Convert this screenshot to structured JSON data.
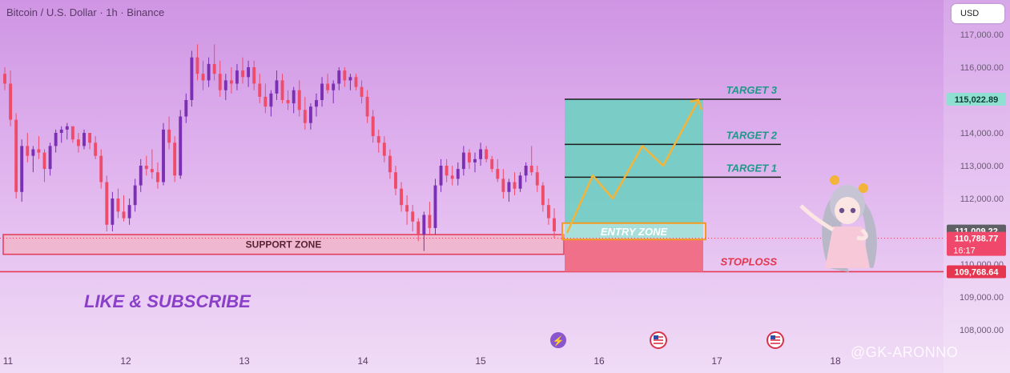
{
  "header": {
    "symbol": "Bitcoin / U.S. Dollar · 1h · Binance",
    "currency_button": "USD"
  },
  "overlay": {
    "like_text": "LIKE & SUBSCRIBE",
    "watermark": "@GK-ARONNO"
  },
  "colors": {
    "bull": "#7b2fb3",
    "bear": "#ef4c6a",
    "target_box": "#6fcfc2",
    "stop_box": "#f06c84",
    "entry_border": "#f59a20",
    "target_text": "#1f9a8a",
    "stop_text": "#e5354f",
    "arrow": "#f2b43a"
  },
  "chart_data": {
    "type": "candlestick",
    "x_tick_labels": [
      "11",
      "12",
      "13",
      "14",
      "15",
      "16",
      "17",
      "18"
    ],
    "y_tick_labels": [
      "117,000.00",
      "116,000.00",
      "114,000.00",
      "113,000.00",
      "112,000.00",
      "110,000.00",
      "109,000.00",
      "108,000.00"
    ],
    "y_ticks": [
      117000,
      116000,
      114000,
      113000,
      112000,
      110000,
      109000,
      108000
    ],
    "ylim": [
      107500,
      117500
    ],
    "price_labels": {
      "target": {
        "value": 115022.89,
        "text": "115,022.89"
      },
      "marker": {
        "value": 111009.22,
        "text": "111,009.22"
      },
      "current": {
        "value": 110788.77,
        "text": "110,788.77",
        "countdown": "16:17"
      },
      "stop": {
        "value": 109768.64,
        "text": "109,768.64"
      }
    },
    "levels": {
      "target_3": {
        "label": "TARGET 3",
        "value": 115022.89
      },
      "target_2": {
        "label": "TARGET 2",
        "value": 113650
      },
      "target_1": {
        "label": "TARGET 1",
        "value": 112650
      },
      "entry": {
        "label": "ENTRY ZONE",
        "low": 110750,
        "high": 111250
      },
      "stop": {
        "label": "STOPLOSS",
        "value": 109768.64
      },
      "support": {
        "label": "SUPPORT ZONE",
        "low": 110300,
        "high": 110900
      }
    },
    "candles": [
      [
        115800,
        116000,
        115300,
        115500
      ],
      [
        115500,
        115900,
        114200,
        114400
      ],
      [
        114400,
        114600,
        112000,
        112200
      ],
      [
        112200,
        113800,
        111900,
        113600
      ],
      [
        113600,
        114000,
        113100,
        113300
      ],
      [
        113300,
        113600,
        112800,
        113500
      ],
      [
        113500,
        113900,
        113200,
        113400
      ],
      [
        113400,
        113500,
        112500,
        112900
      ],
      [
        112900,
        113700,
        112700,
        113600
      ],
      [
        113600,
        114100,
        113400,
        114000
      ],
      [
        114000,
        114200,
        113700,
        114100
      ],
      [
        114100,
        114300,
        113800,
        114200
      ],
      [
        114200,
        114200,
        113700,
        113800
      ],
      [
        113800,
        114000,
        113400,
        113600
      ],
      [
        113600,
        114100,
        113500,
        114000
      ],
      [
        114000,
        114000,
        113500,
        113700
      ],
      [
        113700,
        113900,
        113200,
        113300
      ],
      [
        113300,
        113500,
        112300,
        112500
      ],
      [
        112500,
        112700,
        111000,
        111200
      ],
      [
        111200,
        112200,
        111000,
        112000
      ],
      [
        112000,
        112300,
        111400,
        111600
      ],
      [
        111600,
        112100,
        111300,
        111400
      ],
      [
        111400,
        112000,
        111200,
        111800
      ],
      [
        111800,
        112600,
        111600,
        112400
      ],
      [
        112400,
        113200,
        112200,
        113000
      ],
      [
        113000,
        113300,
        112700,
        112900
      ],
      [
        112900,
        113500,
        112600,
        112800
      ],
      [
        112800,
        113100,
        112300,
        112500
      ],
      [
        112500,
        114300,
        112400,
        114100
      ],
      [
        114100,
        114500,
        113500,
        113700
      ],
      [
        113700,
        113900,
        112500,
        112700
      ],
      [
        112700,
        114700,
        112600,
        114500
      ],
      [
        114500,
        115200,
        114300,
        115000
      ],
      [
        115000,
        116500,
        114800,
        116300
      ],
      [
        116300,
        116700,
        115600,
        115800
      ],
      [
        115800,
        116200,
        115300,
        115600
      ],
      [
        115600,
        116300,
        115400,
        116100
      ],
      [
        116100,
        116700,
        115600,
        115800
      ],
      [
        115800,
        116200,
        115100,
        115300
      ],
      [
        115300,
        115800,
        115000,
        115600
      ],
      [
        115600,
        116000,
        115200,
        115500
      ],
      [
        115500,
        116100,
        115300,
        115900
      ],
      [
        115900,
        116300,
        115500,
        115700
      ],
      [
        115700,
        116200,
        115400,
        116000
      ],
      [
        116000,
        116200,
        115300,
        115500
      ],
      [
        115500,
        115800,
        114900,
        115100
      ],
      [
        115100,
        115500,
        114600,
        114800
      ],
      [
        114800,
        115300,
        114500,
        115200
      ],
      [
        115200,
        115900,
        115000,
        115600
      ],
      [
        115600,
        115800,
        114900,
        115000
      ],
      [
        115000,
        115300,
        114700,
        114900
      ],
      [
        114900,
        115400,
        114600,
        115300
      ],
      [
        115300,
        115600,
        114500,
        114700
      ],
      [
        114700,
        115100,
        114100,
        114300
      ],
      [
        114300,
        114900,
        114100,
        114800
      ],
      [
        114800,
        115200,
        114500,
        115000
      ],
      [
        115000,
        115700,
        114800,
        115500
      ],
      [
        115500,
        115800,
        115200,
        115300
      ],
      [
        115300,
        115600,
        114900,
        115500
      ],
      [
        115500,
        116000,
        115300,
        115900
      ],
      [
        115900,
        116000,
        115400,
        115600
      ],
      [
        115600,
        115800,
        115300,
        115700
      ],
      [
        115700,
        115800,
        115300,
        115400
      ],
      [
        115400,
        115600,
        114900,
        115100
      ],
      [
        115100,
        115300,
        114300,
        114500
      ],
      [
        114500,
        114700,
        113700,
        113900
      ],
      [
        113900,
        114100,
        113400,
        113700
      ],
      [
        113700,
        113900,
        113100,
        113300
      ],
      [
        113300,
        113500,
        112600,
        112800
      ],
      [
        112800,
        113000,
        112100,
        112300
      ],
      [
        112300,
        112500,
        111600,
        111800
      ],
      [
        111800,
        112100,
        111200,
        111600
      ],
      [
        111600,
        111800,
        111000,
        111300
      ],
      [
        111300,
        111400,
        110700,
        110900
      ],
      [
        110900,
        111600,
        110400,
        111500
      ],
      [
        111500,
        111900,
        110900,
        111100
      ],
      [
        111100,
        112600,
        110900,
        112400
      ],
      [
        112400,
        113200,
        112200,
        113000
      ],
      [
        113000,
        113200,
        112500,
        112700
      ],
      [
        112700,
        113000,
        112400,
        112600
      ],
      [
        112600,
        113100,
        112400,
        112900
      ],
      [
        112900,
        113600,
        112700,
        113400
      ],
      [
        113400,
        113500,
        112900,
        113100
      ],
      [
        113100,
        113400,
        112800,
        113200
      ],
      [
        113200,
        113700,
        113000,
        113500
      ],
      [
        113500,
        113600,
        113100,
        113200
      ],
      [
        113200,
        113300,
        112800,
        112900
      ],
      [
        112900,
        113200,
        112500,
        112600
      ],
      [
        112600,
        112900,
        112000,
        112200
      ],
      [
        112200,
        112600,
        111900,
        112500
      ],
      [
        112500,
        112800,
        112100,
        112300
      ],
      [
        112300,
        112800,
        112200,
        112700
      ],
      [
        112700,
        113100,
        112500,
        113000
      ],
      [
        113000,
        113600,
        112700,
        112800
      ],
      [
        112800,
        113000,
        112200,
        112400
      ],
      [
        112400,
        112500,
        111600,
        111800
      ],
      [
        111800,
        112000,
        111200,
        111400
      ],
      [
        111400,
        111700,
        110800,
        111000
      ]
    ]
  }
}
